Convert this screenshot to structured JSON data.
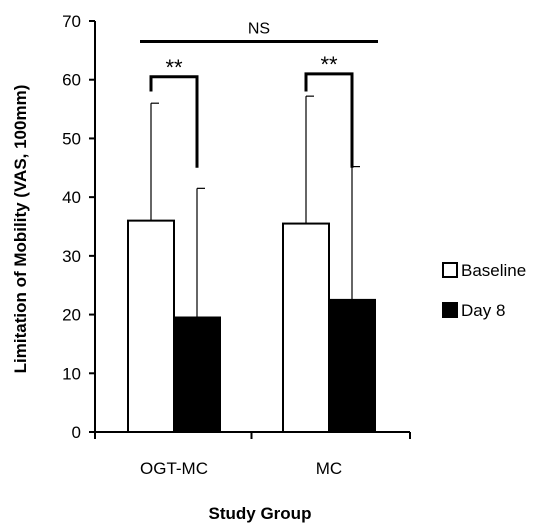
{
  "chart_data": {
    "type": "bar",
    "xlabel": "Study Group",
    "ylabel": "Limitation of Mobility (VAS, 100mm)",
    "ylim": [
      0,
      70
    ],
    "yticks": [
      0,
      10,
      20,
      30,
      40,
      50,
      60,
      70
    ],
    "categories": [
      "OGT-MC",
      "MC"
    ],
    "series": [
      {
        "name": "Baseline",
        "values": [
          36.0,
          35.5
        ],
        "errors": [
          20.0,
          21.7
        ],
        "color": "#ffffff"
      },
      {
        "name": "Day 8",
        "values": [
          19.5,
          22.5
        ],
        "errors": [
          22.0,
          22.7
        ],
        "color": "#000000"
      }
    ],
    "legend_position": "right",
    "annotations": {
      "within_group": [
        "**",
        "**"
      ],
      "between_groups": "NS"
    }
  }
}
